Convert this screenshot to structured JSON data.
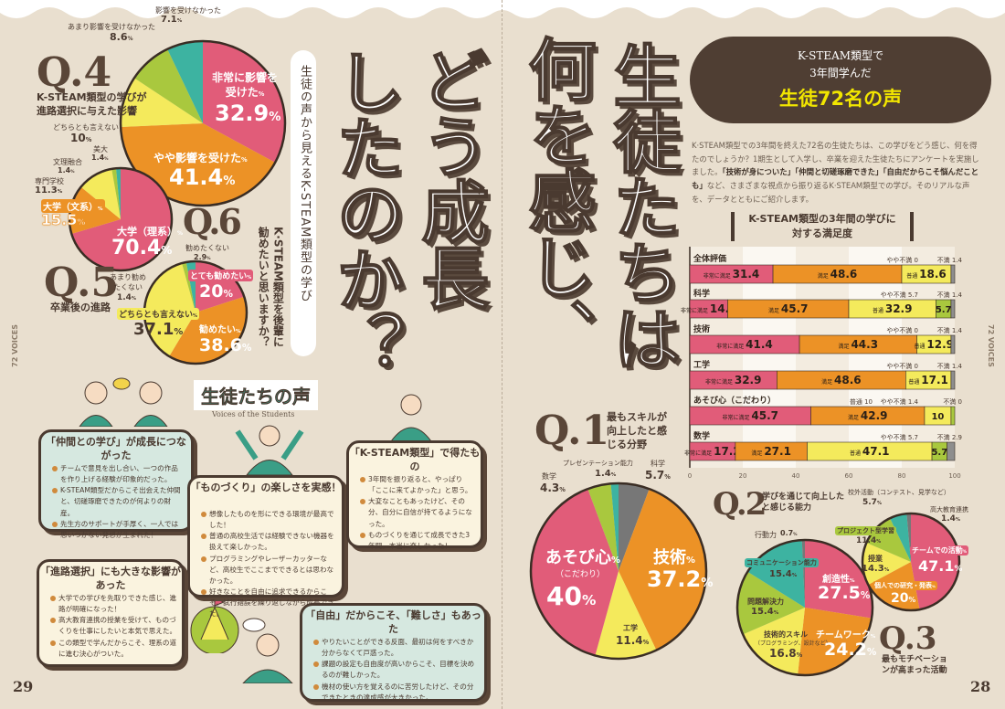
{
  "left_page": {
    "page_number": "29",
    "side_label": "72 VOICES",
    "subtitle": "生徒の声から見えるK-STEAM類型の学び",
    "title_col1": "どう成長",
    "title_col2": "したのか？",
    "voices_heading": "生徒たちの声",
    "voices_sub": "Voices of the Students",
    "q4": {
      "mark": "Q.4",
      "question": "K-STEAM類型の学びが進路選択に与えた影響"
    },
    "q5": {
      "mark": "Q.5",
      "question": "卒業後の進路"
    },
    "q6": {
      "mark": "Q.6",
      "question": "K·STEAM類型を後輩に勧めたいと思いますか？"
    },
    "comments": [
      {
        "title": "「仲間との学び」が成長につながった",
        "items": [
          "チームで意見を出し合い、一つの作品を作り上げる経験が印象的だった。",
          "K-STEAM類型だからこそ出会えた仲間と、切磋琢磨できたのが何よりの財産。",
          "先生方のサポートが手厚く、一人では思いつかない発想が生まれた！"
        ]
      },
      {
        "title": "「ものづくり」の楽しさを実感！",
        "items": [
          "想像したものを形にできる環境が最高でした！",
          "普通の高校生活では経験できない機器を扱えて楽しかった。",
          "プログラミングやレーザーカッターなど、高校生でここまでできるとは思わなかった。",
          "好きなことを自由に追求できるからこそ、試行錯誤を繰り返しながら成長できた。"
        ]
      },
      {
        "title": "「K-STEAM類型」で得たもの",
        "items": [
          "3年間を振り返ると、やっぱり「ここに来てよかった」と思う。",
          "大変なこともあったけど、その分、自分に自信が持てるようになった。",
          "ものづくりを通じて成長できた3年間。本当に楽しかった！"
        ]
      },
      {
        "title": "「進路選択」にも大きな影響があった",
        "items": [
          "大学での学びを先取りできた感じ、進路が明確になった！",
          "高大教育連携の授業を受けて、ものづくりを仕事にしたいと本気で思えた。",
          "この類型で学んだからこそ、理系の道に進む決心がついた。"
        ]
      },
      {
        "title": "「自由」だからこそ、「難しさ」もあった",
        "items": [
          "やりたいことができる反面、最初は何をすべきか分からなくて戸惑った。",
          "課題の設定も自由度が高いからこそ、目標を決めるのが難しかった。",
          "機材の使い方を覚えるのに苦労したけど、その分できたときの達成感が大きかった。"
        ]
      }
    ]
  },
  "right_page": {
    "page_number": "28",
    "side_label": "72 VOICES",
    "title_col1": "生徒たちは",
    "title_col2": "何を感じ、",
    "badge": {
      "line1": "K-STEAM類型で",
      "line2": "3年間学んだ",
      "line3": "生徒72名の声"
    },
    "intro_before": "K·STEAM類型での3年間を終えた72名の生徒たちは、この学びをどう感じ、何を得たのでしょうか？1期生として入学し、卒業を迎えた生徒たちにアンケートを実施しました。",
    "intro_bold": "「技術が身についた」「仲間と切磋琢磨できた」「自由だからこそ悩んだことも」",
    "intro_after": "など、さまざまな視点から振り返るK·STEAM類型での学び。そのリアルな声を、データとともにご紹介します。",
    "q1": {
      "mark": "Q.1",
      "question": "最もスキルが向上したと感じる分野"
    },
    "q2": {
      "mark": "Q.2",
      "question": "学びを通じて向上したと感じる能力"
    },
    "q3": {
      "mark": "Q.3",
      "question": "最もモチベーションが高まった活動"
    }
  },
  "colors": {
    "pink": "#e15c79",
    "orange": "#ec9226",
    "yellow": "#f4ea5c",
    "green": "#a9c83e",
    "teal": "#3db3a1",
    "gray": "#777777",
    "dark": "#4f3e33",
    "accent_yellow": "#f2e600"
  },
  "chart_data": [
    {
      "id": "q4",
      "type": "pie",
      "title": "K-STEAM類型の学びが進路選択に与えた影響",
      "labels": [
        "非常に影響を受けた",
        "やや影響を受けた",
        "どちらとも言えない",
        "あまり影響を受けなかった",
        "影響を受けなかった"
      ],
      "values": [
        32.9,
        41.4,
        10.0,
        8.6,
        7.1
      ],
      "colors": [
        "#e15c79",
        "#ec9226",
        "#f4ea5c",
        "#a9c83e",
        "#3db3a1"
      ]
    },
    {
      "id": "q5",
      "type": "pie",
      "title": "卒業後の進路",
      "labels": [
        "大学（理系）",
        "大学（文系）",
        "専門学校",
        "文理融合",
        "美大"
      ],
      "values": [
        70.4,
        15.5,
        11.3,
        1.4,
        1.4
      ],
      "colors": [
        "#e15c79",
        "#ec9226",
        "#f4ea5c",
        "#a9c83e",
        "#3db3a1"
      ]
    },
    {
      "id": "q6",
      "type": "pie",
      "title": "K·STEAM類型を後輩に勧めたいと思いますか？",
      "labels": [
        "とても勧めたい",
        "勧めたい",
        "どちらとも言えない",
        "あまり勧めたくない",
        "勧めたくない"
      ],
      "values": [
        20.0,
        38.6,
        37.1,
        1.4,
        2.9
      ],
      "colors": [
        "#e15c79",
        "#ec9226",
        "#f4ea5c",
        "#a9c83e",
        "#3db3a1"
      ]
    },
    {
      "id": "q1",
      "type": "pie",
      "title": "最もスキルが向上したと感じる分野",
      "labels": [
        "科学",
        "技術",
        "工学",
        "あそび心",
        "数学",
        "プレゼンテーション能力"
      ],
      "sublabels": {
        "3": "（こだわり）"
      },
      "values": [
        5.7,
        37.2,
        11.4,
        40.0,
        4.3,
        1.4
      ],
      "colors": [
        "#777777",
        "#ec9226",
        "#f4ea5c",
        "#e15c79",
        "#a9c83e",
        "#3db3a1"
      ]
    },
    {
      "id": "q2",
      "type": "pie",
      "title": "学びを通じて向上したと感じる能力",
      "labels": [
        "創造性",
        "チームワーク",
        "技術的スキル",
        "問題解決力",
        "コミュニケーション能力",
        "行動力"
      ],
      "sublabels": {
        "2": "（プログラミング、設計など）"
      },
      "values": [
        27.5,
        24.2,
        16.8,
        15.4,
        15.4,
        0.7
      ],
      "colors": [
        "#e15c79",
        "#ec9226",
        "#f4ea5c",
        "#a9c83e",
        "#3db3a1",
        "#777777"
      ]
    },
    {
      "id": "q3",
      "type": "pie",
      "title": "最もモチベーションが高まった活動",
      "labels": [
        "チームでの活動",
        "個人での研究・発表",
        "授業",
        "プロジェクト型学習",
        "校外活動（コンテスト、見学など）",
        "高大教育連携"
      ],
      "values": [
        47.1,
        20.0,
        14.3,
        11.4,
        5.7,
        1.4
      ],
      "colors": [
        "#e15c79",
        "#ec9226",
        "#f4ea5c",
        "#a9c83e",
        "#3db3a1",
        "#777777"
      ]
    },
    {
      "id": "satisfaction",
      "type": "bar",
      "orientation": "horizontal",
      "stacked": true,
      "title": "K-STEAM類型の3年間の学びに対する満足度",
      "categories": [
        "全体評価",
        "科学",
        "技術",
        "工学",
        "あそび心",
        "数学"
      ],
      "category_notes": {
        "4": "（こだわり）"
      },
      "series": [
        {
          "name": "非常に満足",
          "color": "#e15c79",
          "values": [
            31.4,
            14.3,
            41.4,
            32.9,
            45.7,
            17.2
          ]
        },
        {
          "name": "満足",
          "color": "#ec9226",
          "values": [
            48.6,
            45.7,
            44.3,
            48.6,
            42.9,
            27.1
          ]
        },
        {
          "name": "普通",
          "color": "#f4ea5c",
          "values": [
            18.6,
            32.9,
            12.9,
            17.1,
            10.0,
            47.1
          ]
        },
        {
          "name": "やや不満",
          "color": "#a9c83e",
          "values": [
            0,
            5.7,
            0,
            0,
            1.4,
            5.7
          ]
        },
        {
          "name": "不満",
          "color": "#8e8e8e",
          "values": [
            1.4,
            1.4,
            1.4,
            1.4,
            0,
            2.9
          ]
        }
      ],
      "xlim": [
        0,
        100
      ],
      "xticks": [
        0,
        20,
        40,
        60,
        80,
        100
      ],
      "grid": true
    }
  ]
}
